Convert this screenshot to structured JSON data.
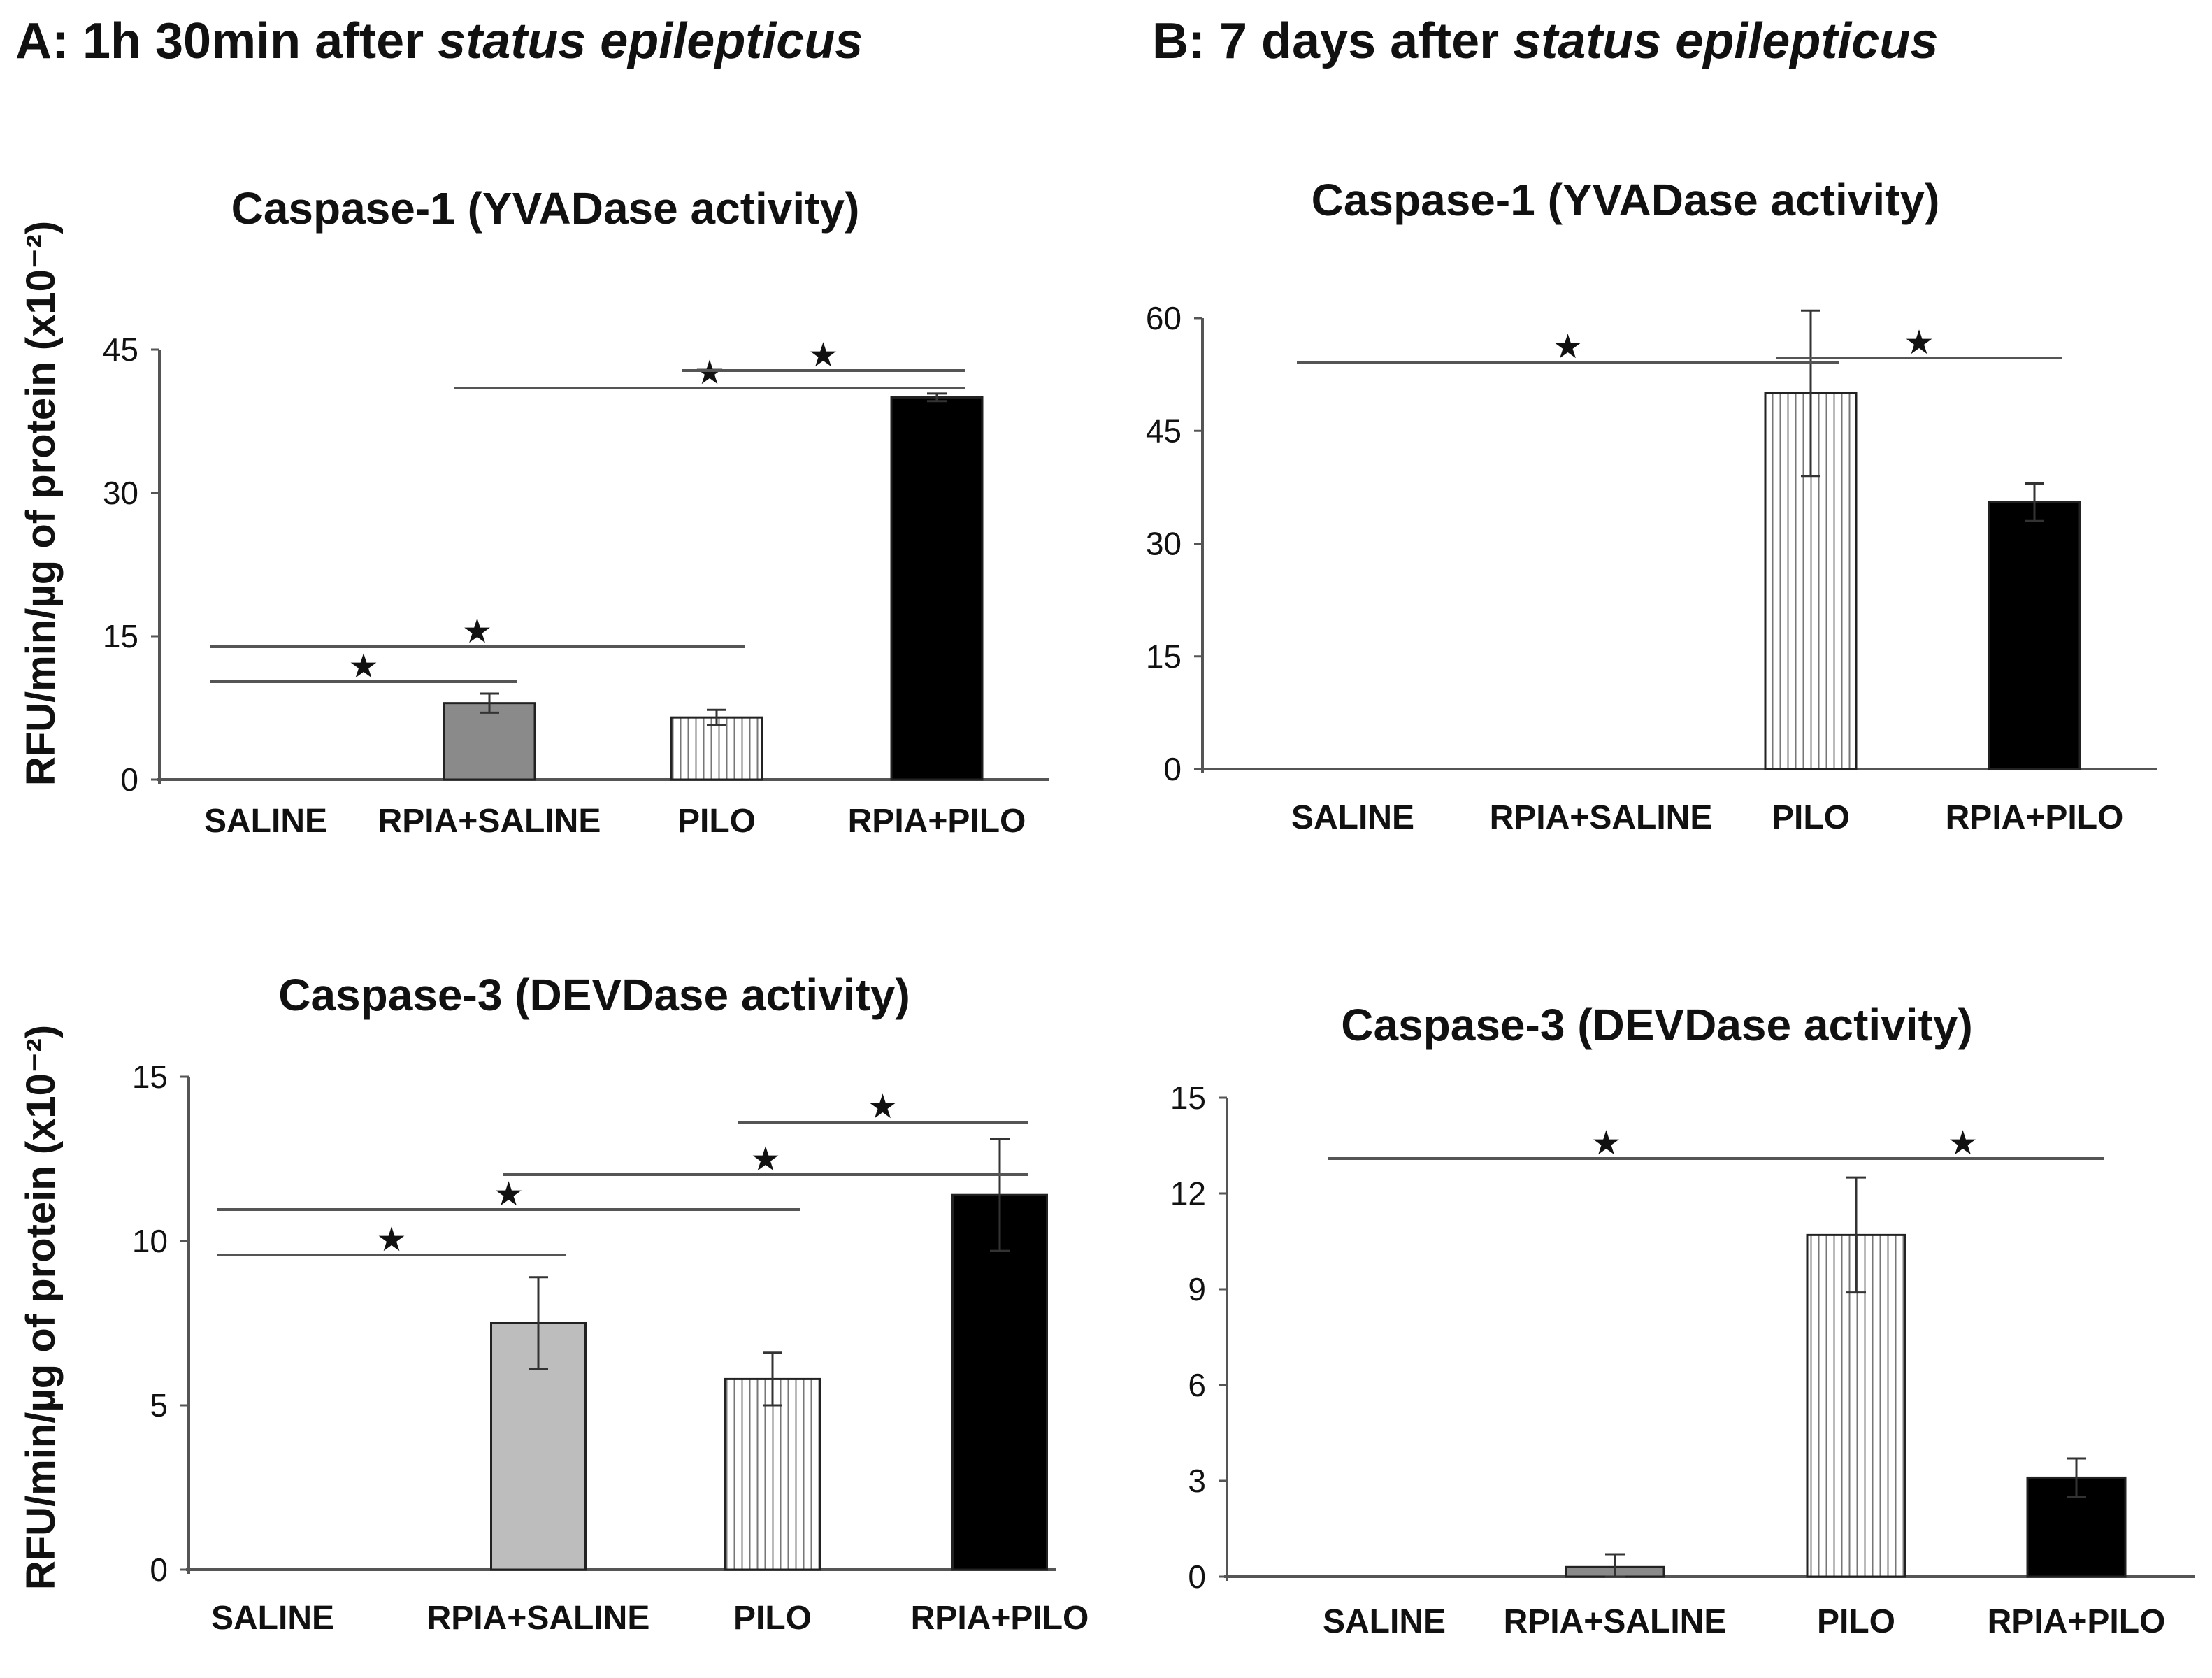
{
  "panels": {
    "a": {
      "prefix": "A: 1h 30min after ",
      "italic": "status epilepticus"
    },
    "b": {
      "prefix": "B: 7 days after ",
      "italic": "status epilepticus"
    }
  },
  "y_axis_label": "RFU/min/µg of protein (x10⁻²)",
  "star_glyph": "★",
  "colors": {
    "saline": "#ffffff",
    "rpia_saline_a1": "#8a8a8a",
    "rpia_saline": "#bdbdbd",
    "pilo": "#ffffff",
    "rpia_pilo": "#000000",
    "line": "#555555"
  },
  "chart_data": [
    {
      "id": "a1",
      "type": "bar",
      "panel": "A",
      "title": "Caspase-1 (YVADase activity)",
      "categories": [
        "SALINE",
        "RPIA+SALINE",
        "PILO",
        "RPIA+PILO"
      ],
      "values": [
        0,
        8,
        6.5,
        40
      ],
      "errors": [
        0,
        1,
        0.8,
        0.4
      ],
      "fills": [
        "none",
        "gray",
        "stripes",
        "black"
      ],
      "ylim": [
        0,
        45
      ],
      "yticks": [
        0,
        15,
        30,
        45
      ],
      "ylabel": "RFU/min/µg of protein (x10⁻²)",
      "significance": [
        {
          "from": 0,
          "to": 1,
          "label": "*"
        },
        {
          "from": 0,
          "to": 2,
          "label": "*"
        },
        {
          "from": 1,
          "to": 3,
          "label": "*"
        },
        {
          "from": 2,
          "to": 3,
          "label": "*"
        }
      ]
    },
    {
      "id": "b1",
      "type": "bar",
      "panel": "B",
      "title": "Caspase-1 (YVADase activity)",
      "categories": [
        "SALINE",
        "RPIA+SALINE",
        "PILO",
        "RPIA+PILO"
      ],
      "values": [
        0,
        0,
        50,
        35.5
      ],
      "errors": [
        0,
        0,
        11,
        2.5
      ],
      "fills": [
        "none",
        "none",
        "stripes",
        "black"
      ],
      "ylim": [
        0,
        60
      ],
      "yticks": [
        0,
        15,
        30,
        45,
        60
      ],
      "significance": [
        {
          "from": 0,
          "to": 2,
          "label": "*"
        },
        {
          "from": 2,
          "to": 3,
          "label": "*"
        }
      ]
    },
    {
      "id": "a2",
      "type": "bar",
      "panel": "A",
      "title": "Caspase-3 (DEVDase activity)",
      "categories": [
        "SALINE",
        "RPIA+SALINE",
        "PILO",
        "RPIA+PILO"
      ],
      "values": [
        0,
        7.5,
        5.8,
        11.4
      ],
      "errors": [
        0,
        1.4,
        0.8,
        1.7
      ],
      "fills": [
        "none",
        "lightgray",
        "stripes",
        "black"
      ],
      "ylim": [
        0,
        15
      ],
      "yticks": [
        0,
        5,
        10,
        15
      ],
      "ylabel": "RFU/min/µg of protein (x10⁻²)",
      "significance": [
        {
          "from": 0,
          "to": 1,
          "label": "*"
        },
        {
          "from": 0,
          "to": 2,
          "label": "*"
        },
        {
          "from": 1,
          "to": 3,
          "label": "*"
        },
        {
          "from": 2,
          "to": 3,
          "label": "*"
        }
      ]
    },
    {
      "id": "b2",
      "type": "bar",
      "panel": "B",
      "title": "Caspase-3 (DEVDase activity)",
      "categories": [
        "SALINE",
        "RPIA+SALINE",
        "PILO",
        "RPIA+PILO"
      ],
      "values": [
        0,
        0.3,
        10.7,
        3.1
      ],
      "errors": [
        0,
        0.4,
        1.8,
        0.6
      ],
      "fills": [
        "none",
        "gray",
        "stripes",
        "black"
      ],
      "ylim": [
        0,
        15
      ],
      "yticks": [
        0,
        3,
        6,
        9,
        12,
        15
      ],
      "significance": [
        {
          "from": 0,
          "to": 2,
          "label": "*"
        },
        {
          "from": 2,
          "to": 3,
          "label": "*"
        }
      ]
    }
  ]
}
